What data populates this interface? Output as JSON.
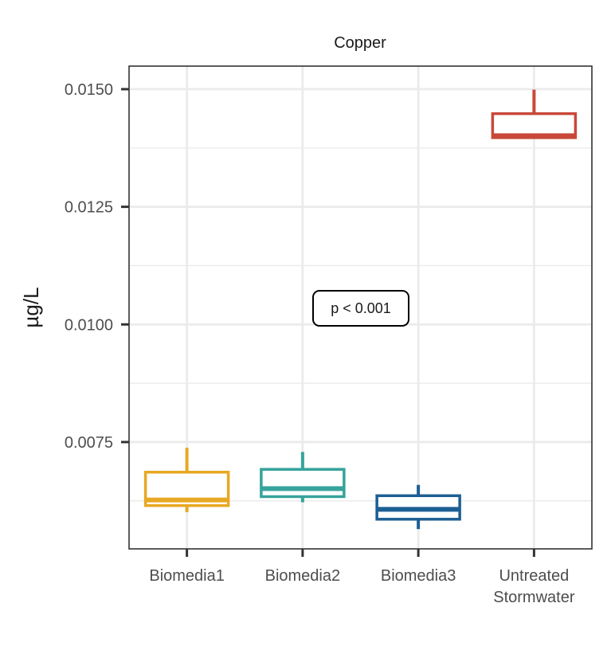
{
  "chart_data": {
    "type": "box",
    "title": "Copper",
    "xlabel": "",
    "ylabel": "µg/L",
    "ylim": [
      0.00523,
      0.01549
    ],
    "yticks": [
      0.0075,
      0.01,
      0.0125,
      0.015
    ],
    "ytick_labels": [
      "0.0075",
      "0.0100",
      "0.0125",
      "0.0150"
    ],
    "grid": true,
    "legend": "none",
    "annotation": "p < 0.001",
    "categories": [
      "Biomedia1",
      "Biomedia2",
      "Biomedia3",
      "Untreated\nStormwater"
    ],
    "series": [
      {
        "category": "Biomedia1",
        "min": 0.00601,
        "q1": 0.00615,
        "median": 0.00627,
        "q3": 0.00686,
        "max": 0.00738,
        "color": "#E8A823"
      },
      {
        "category": "Biomedia2",
        "min": 0.00622,
        "q1": 0.00634,
        "median": 0.00651,
        "q3": 0.00692,
        "max": 0.00729,
        "color": "#36A39C"
      },
      {
        "category": "Biomedia3",
        "min": 0.00565,
        "q1": 0.00586,
        "median": 0.00607,
        "q3": 0.00636,
        "max": 0.00659,
        "color": "#1D5F94"
      },
      {
        "category": "Untreated\nStormwater",
        "min": 0.01397,
        "q1": 0.01397,
        "median": 0.01401,
        "q3": 0.01448,
        "max": 0.01499,
        "color": "#C8493A"
      }
    ]
  }
}
